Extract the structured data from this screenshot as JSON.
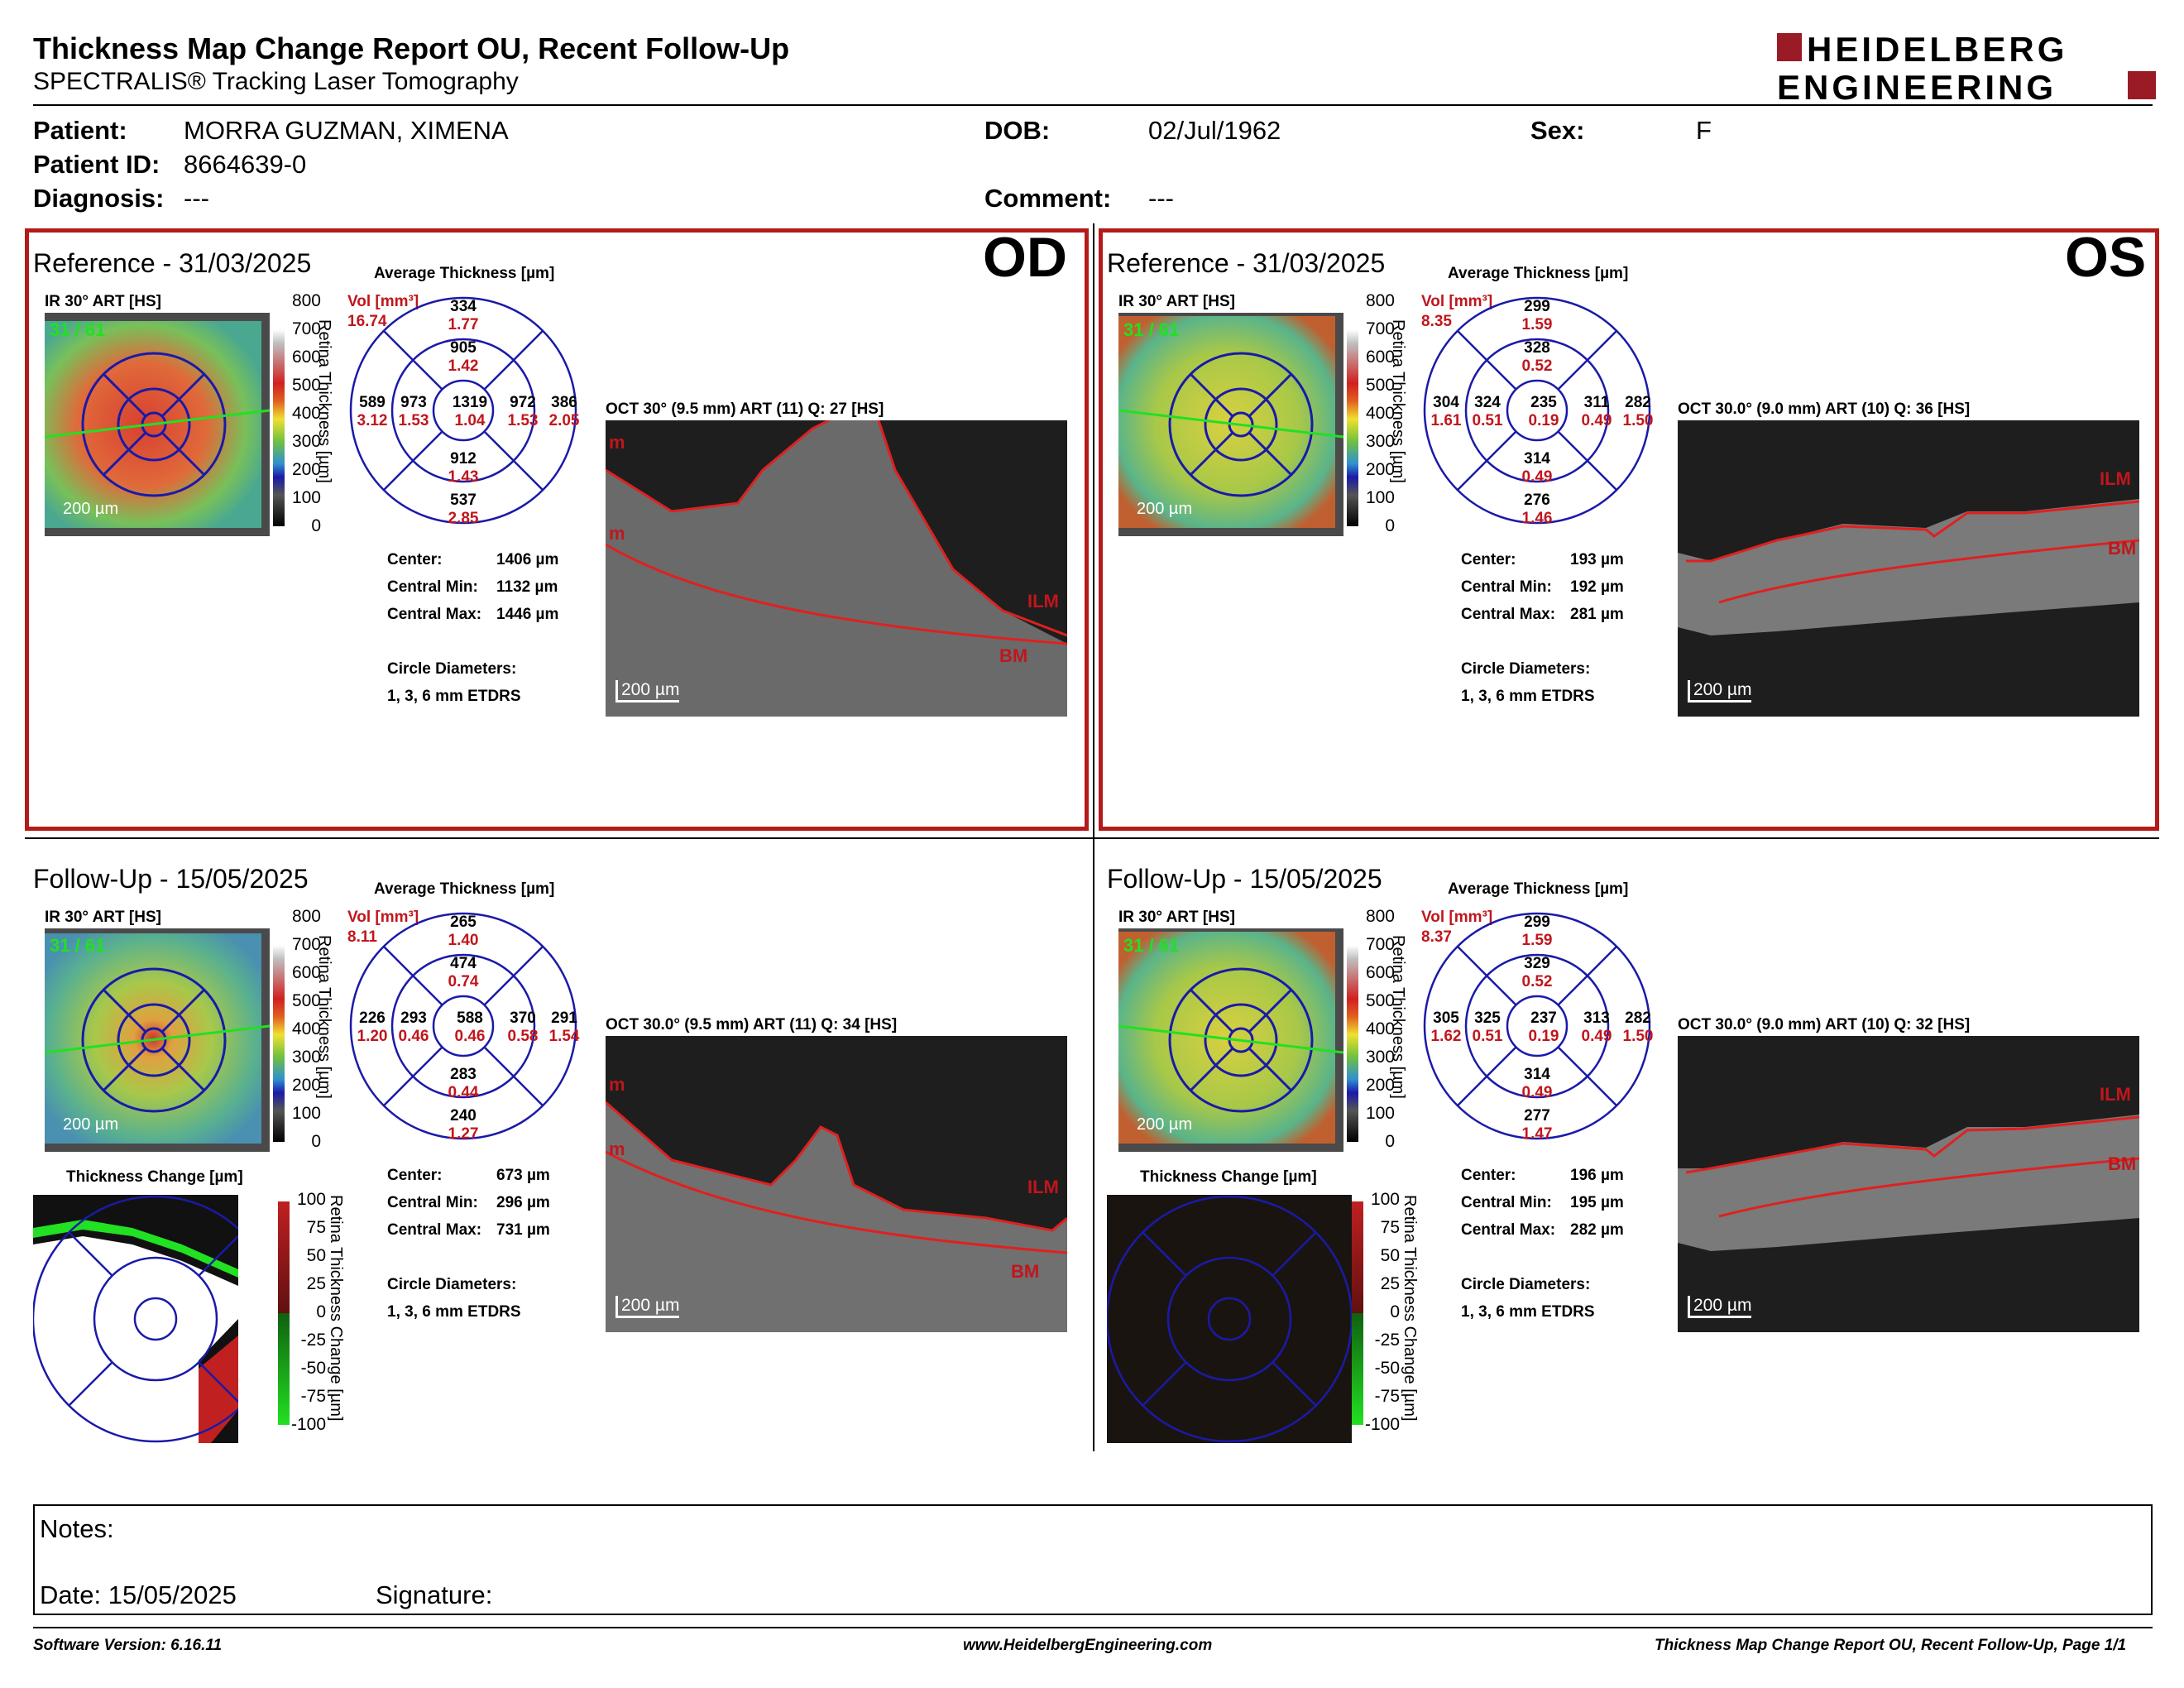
{
  "header": {
    "title": "Thickness Map Change Report OU, Recent Follow-Up",
    "subtitle": "SPECTRALIS® Tracking Laser Tomography",
    "logo_line1": "HEIDELBERG",
    "logo_line2": "ENGINEERING"
  },
  "patient": {
    "name_label": "Patient:",
    "name": "MORRA GUZMAN, XIMENA",
    "id_label": "Patient ID:",
    "id": "8664639-0",
    "diagnosis_label": "Diagnosis:",
    "diagnosis": "---",
    "dob_label": "DOB:",
    "dob": "02/Jul/1962",
    "sex_label": "Sex:",
    "sex": "F",
    "comment_label": "Comment:",
    "comment": "---"
  },
  "common": {
    "avg_label": "Average Thickness [µm]",
    "vol_label": "Vol [mm³]",
    "ir_label": "IR 30° ART [HS]",
    "scale_200": "200 µm",
    "thick_axis": "Retina Thickness [µm]",
    "change_axis": "Retina Thickness Change [µm]",
    "change_title": "Thickness Change [µm]",
    "center_label": "Center:",
    "cmin_label": "Central Min:",
    "cmax_label": "Central Max:",
    "circle_label": "Circle Diameters:",
    "circle_value": "1, 3, 6 mm ETDRS",
    "ilm": "ILM",
    "bm": "BM",
    "m": "m",
    "thick_ticks": [
      "800",
      "700",
      "600",
      "500",
      "400",
      "300",
      "200",
      "100",
      "0"
    ],
    "change_ticks": [
      "100",
      "75",
      "50",
      "25",
      "0",
      "-25",
      "-50",
      "-75",
      "-100"
    ],
    "scan_counter": "31 / 61"
  },
  "od_ref": {
    "eye": "OD",
    "title": "Reference - 31/03/2025",
    "vol": "16.74",
    "oct_label": "OCT 30° (9.5 mm) ART (11) Q: 27 [HS]",
    "center": "1406 µm",
    "cmin": "1132 µm",
    "cmax": "1446 µm",
    "cells": {
      "outer_sup": [
        "334",
        "1.77"
      ],
      "inner_sup": [
        "905",
        "1.42"
      ],
      "outer_temp": [
        "589",
        "3.12"
      ],
      "inner_temp": [
        "973",
        "1.53"
      ],
      "center": [
        "1319",
        "1.04"
      ],
      "inner_nas": [
        "972",
        "1.53"
      ],
      "outer_nas": [
        "386",
        "2.05"
      ],
      "inner_inf": [
        "912",
        "1.43"
      ],
      "outer_inf": [
        "537",
        "2.85"
      ]
    }
  },
  "os_ref": {
    "eye": "OS",
    "title": "Reference - 31/03/2025",
    "vol": "8.35",
    "oct_label": "OCT 30.0° (9.0 mm) ART (10) Q: 36 [HS]",
    "center": "193 µm",
    "cmin": "192 µm",
    "cmax": "281 µm",
    "cells": {
      "outer_sup": [
        "299",
        "1.59"
      ],
      "inner_sup": [
        "328",
        "0.52"
      ],
      "outer_temp": [
        "304",
        "1.61"
      ],
      "inner_temp": [
        "324",
        "0.51"
      ],
      "center": [
        "235",
        "0.19"
      ],
      "inner_nas": [
        "311",
        "0.49"
      ],
      "outer_nas": [
        "282",
        "1.50"
      ],
      "inner_inf": [
        "314",
        "0.49"
      ],
      "outer_inf": [
        "276",
        "1.46"
      ]
    }
  },
  "od_fu": {
    "title": "Follow-Up - 15/05/2025",
    "vol": "8.11",
    "oct_label": "OCT 30.0° (9.5 mm) ART (11) Q: 34 [HS]",
    "center": "673 µm",
    "cmin": "296 µm",
    "cmax": "731 µm",
    "cells": {
      "outer_sup": [
        "265",
        "1.40"
      ],
      "inner_sup": [
        "474",
        "0.74"
      ],
      "outer_temp": [
        "226",
        "1.20"
      ],
      "inner_temp": [
        "293",
        "0.46"
      ],
      "center": [
        "588",
        "0.46"
      ],
      "inner_nas": [
        "370",
        "0.58"
      ],
      "outer_nas": [
        "291",
        "1.54"
      ],
      "inner_inf": [
        "283",
        "0.44"
      ],
      "outer_inf": [
        "240",
        "1.27"
      ]
    }
  },
  "os_fu": {
    "title": "Follow-Up - 15/05/2025",
    "vol": "8.37",
    "oct_label": "OCT 30.0° (9.0 mm) ART (10) Q: 32 [HS]",
    "center": "196 µm",
    "cmin": "195 µm",
    "cmax": "282 µm",
    "cells": {
      "outer_sup": [
        "299",
        "1.59"
      ],
      "inner_sup": [
        "329",
        "0.52"
      ],
      "outer_temp": [
        "305",
        "1.62"
      ],
      "inner_temp": [
        "325",
        "0.51"
      ],
      "center": [
        "237",
        "0.19"
      ],
      "inner_nas": [
        "313",
        "0.49"
      ],
      "outer_nas": [
        "282",
        "1.50"
      ],
      "inner_inf": [
        "314",
        "0.49"
      ],
      "outer_inf": [
        "277",
        "1.47"
      ]
    }
  },
  "notes": {
    "label": "Notes:",
    "date_label": "Date: 15/05/2025",
    "signature_label": "Signature:"
  },
  "footer": {
    "version": "Software Version: 6.16.11",
    "url": "www.HeidelbergEngineering.com",
    "page": "Thickness Map Change Report OU, Recent Follow-Up, Page 1/1"
  },
  "colors": {
    "frame_red": "#b31b1b",
    "etdrs_blue": "#1a1aa8",
    "value_red": "#c0161c"
  }
}
